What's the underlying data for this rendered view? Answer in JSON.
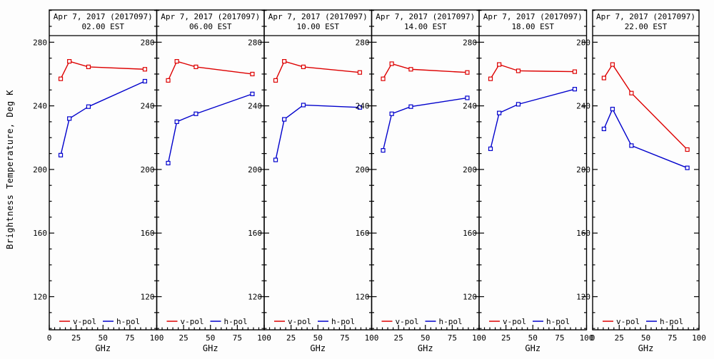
{
  "chart_data": {
    "type": "line",
    "title": "Apr  7, 2017 (2017097)",
    "xlabel": "GHz",
    "ylabel": "Brightness Temperature, Deg K",
    "xlim": [
      0,
      100
    ],
    "ylim": [
      99,
      300
    ],
    "x_ticks": [
      0,
      25,
      50,
      75,
      100
    ],
    "y_ticks": [
      120,
      160,
      200,
      240,
      280
    ],
    "frequencies_ghz": [
      10.65,
      18.7,
      36.5,
      89
    ],
    "legend": [
      {
        "label": "v-pol",
        "color": "#dd0000"
      },
      {
        "label": "h-pol",
        "color": "#0000cc"
      }
    ],
    "panels": [
      {
        "time": "02.00 EST",
        "series": [
          {
            "name": "v-pol",
            "values": [
              257,
              268,
              264.5,
              263
            ]
          },
          {
            "name": "h-pol",
            "values": [
              209,
              232,
              239.5,
              255.5
            ]
          }
        ]
      },
      {
        "time": "06.00 EST",
        "series": [
          {
            "name": "v-pol",
            "values": [
              256,
              268,
              264.5,
              260
            ]
          },
          {
            "name": "h-pol",
            "values": [
              204,
              230,
              235,
              247.5
            ]
          }
        ]
      },
      {
        "time": "10.00 EST",
        "series": [
          {
            "name": "v-pol",
            "values": [
              256,
              268,
              264.5,
              261
            ]
          },
          {
            "name": "h-pol",
            "values": [
              206,
              231.5,
              240.5,
              239
            ]
          }
        ]
      },
      {
        "time": "14.00 EST",
        "series": [
          {
            "name": "v-pol",
            "values": [
              257,
              266.5,
              263,
              261
            ]
          },
          {
            "name": "h-pol",
            "values": [
              212,
              235,
              239.5,
              245
            ]
          }
        ]
      },
      {
        "time": "18.00 EST",
        "series": [
          {
            "name": "v-pol",
            "values": [
              257,
              266,
              262,
              261.5
            ]
          },
          {
            "name": "h-pol",
            "values": [
              213,
              235.5,
              241,
              250.5
            ]
          }
        ]
      },
      {
        "time": "22.00 EST",
        "series": [
          {
            "name": "v-pol",
            "values": [
              257.5,
              266,
              248,
              212.5
            ]
          },
          {
            "name": "h-pol",
            "values": [
              225.5,
              238,
              215,
              201
            ]
          }
        ]
      }
    ]
  }
}
